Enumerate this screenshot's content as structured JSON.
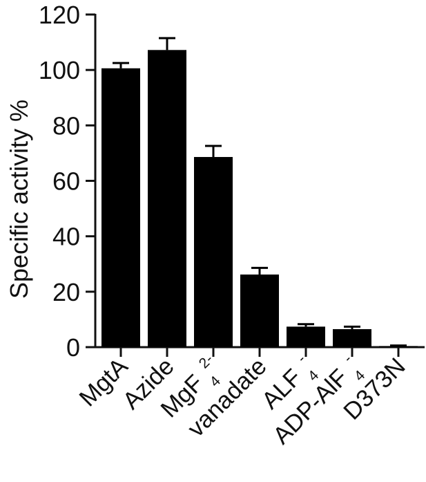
{
  "chart_data": {
    "type": "bar",
    "title": "",
    "xlabel": "",
    "ylabel": "Specific activity %",
    "ylim": [
      0,
      120
    ],
    "yticks": [
      0,
      20,
      40,
      60,
      80,
      100,
      120
    ],
    "ytick_labels": [
      "0",
      "20",
      "40",
      "60",
      "80",
      "100",
      "120"
    ],
    "categories": [
      {
        "base": "MgtA",
        "sub": "",
        "sup": ""
      },
      {
        "base": "Azide",
        "sub": "",
        "sup": ""
      },
      {
        "base": "MgF",
        "sub": "4",
        "sup": "2-"
      },
      {
        "base": "vanadate",
        "sub": "",
        "sup": ""
      },
      {
        "base": "ALF",
        "sub": "4",
        "sup": "-"
      },
      {
        "base": "ADP-AlF",
        "sub": "4",
        "sup": "-"
      },
      {
        "base": "D373N",
        "sub": "",
        "sup": ""
      }
    ],
    "values": [
      100.6,
      107.2,
      68.6,
      26.2,
      7.4,
      6.5,
      0.4
    ],
    "errors": [
      1.9,
      4.3,
      4.0,
      2.4,
      0.9,
      0.9,
      0.2
    ],
    "bar_color": "#000000",
    "error_bars": true,
    "grid": false,
    "legend": "none"
  }
}
